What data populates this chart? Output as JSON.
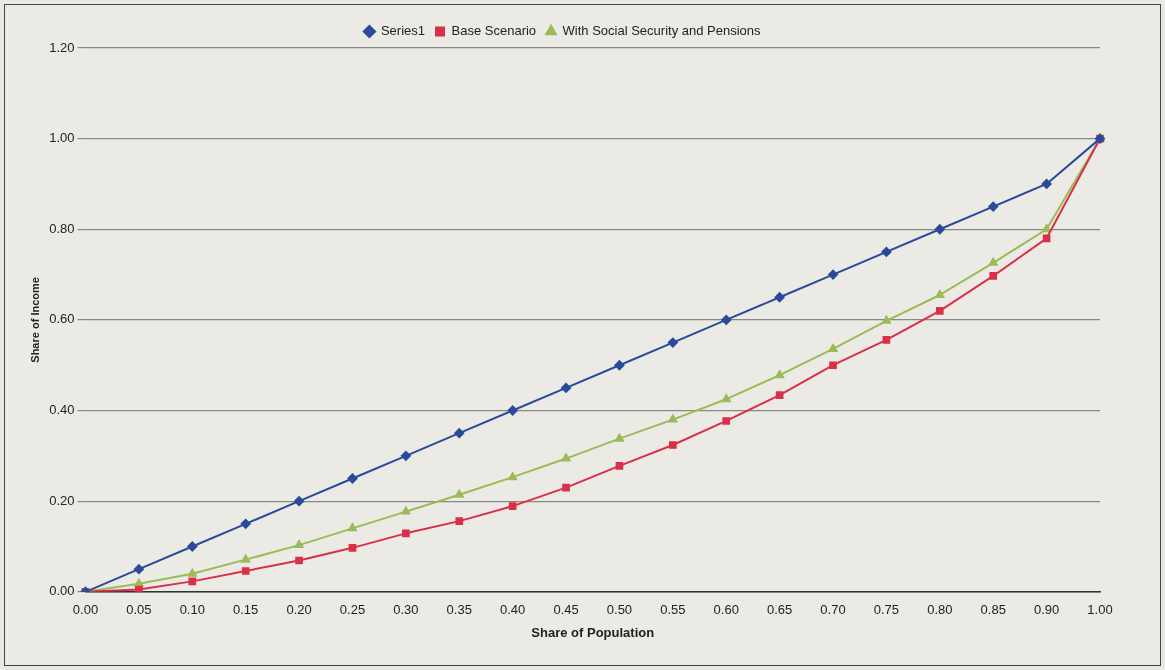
{
  "chart_data": {
    "type": "line",
    "xlabel": "Share of Population",
    "ylabel": "Share of Income",
    "categories": [
      "0.00",
      "0.05",
      "0.10",
      "0.15",
      "0.20",
      "0.25",
      "0.30",
      "0.35",
      "0.40",
      "0.45",
      "0.50",
      "0.55",
      "0.60",
      "0.65",
      "0.70",
      "0.75",
      "0.80",
      "0.85",
      "0.90",
      "1.00"
    ],
    "series": [
      {
        "name": "Series1",
        "color": "#2a4a9a",
        "marker": "diamond",
        "values": [
          0,
          0.05,
          0.1,
          0.15,
          0.2,
          0.25,
          0.3,
          0.35,
          0.4,
          0.45,
          0.5,
          0.55,
          0.6,
          0.65,
          0.7,
          0.75,
          0.8,
          0.85,
          0.9,
          1.0
        ]
      },
      {
        "name": "Base Scenario",
        "color": "#d9304a",
        "marker": "square",
        "values": [
          0,
          0.005,
          0.023,
          0.046,
          0.069,
          0.097,
          0.129,
          0.156,
          0.189,
          0.23,
          0.278,
          0.324,
          0.377,
          0.434,
          0.5,
          0.556,
          0.62,
          0.697,
          0.78,
          1.0
        ]
      },
      {
        "name": "With Social Security and Pensions",
        "color": "#9bbb59",
        "marker": "triangle",
        "values": [
          0,
          0.018,
          0.04,
          0.071,
          0.103,
          0.14,
          0.177,
          0.214,
          0.253,
          0.294,
          0.338,
          0.38,
          0.425,
          0.478,
          0.536,
          0.598,
          0.655,
          0.726,
          0.8,
          1.0
        ]
      }
    ],
    "ylim": [
      0,
      1.2
    ],
    "yticks": [
      {
        "value": 0,
        "label": "0.00"
      },
      {
        "value": 0.2,
        "label": "0.20"
      },
      {
        "value": 0.4,
        "label": "0.40"
      },
      {
        "value": 0.6,
        "label": "0.60"
      },
      {
        "value": 0.8,
        "label": "0.80"
      },
      {
        "value": 1,
        "label": "1.00"
      },
      {
        "value": 1.2,
        "label": "1.20"
      }
    ],
    "grid": "y",
    "legend": "top",
    "line_style": "solid"
  }
}
